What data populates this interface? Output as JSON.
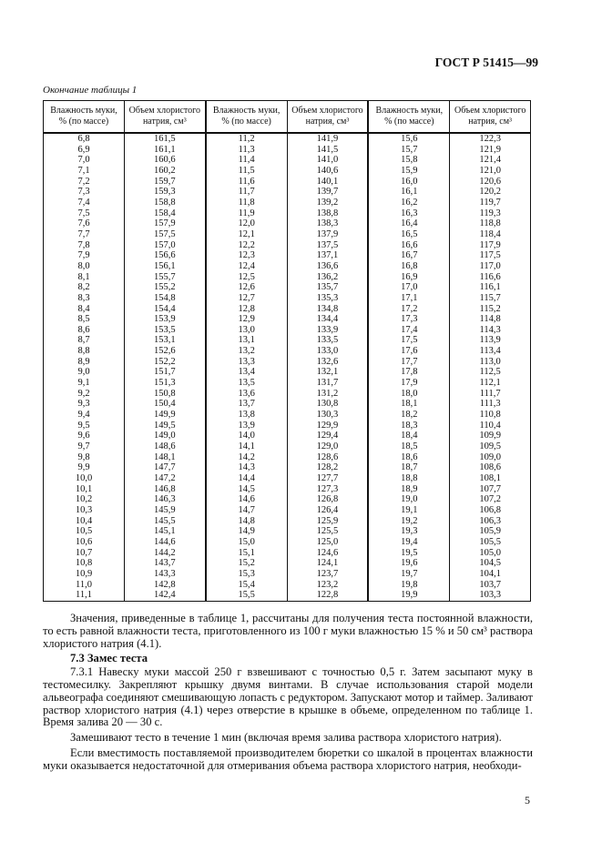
{
  "header": {
    "doc_code": "ГОСТ Р 51415—99"
  },
  "table": {
    "caption": "Окончание таблицы 1",
    "headers": [
      "Влажность муки, % (по массе)",
      "Объем хлористого натрия, см³",
      "Влажность муки, % (по массе)",
      "Объем хлористого натрия, см³",
      "Влажность муки, % (по массе)",
      "Объем хлористого натрия, см³"
    ],
    "rows": [
      [
        "6,8",
        "161,5",
        "11,2",
        "141,9",
        "15,6",
        "122,3"
      ],
      [
        "6,9",
        "161,1",
        "11,3",
        "141,5",
        "15,7",
        "121,9"
      ],
      [
        "7,0",
        "160,6",
        "11,4",
        "141,0",
        "15,8",
        "121,4"
      ],
      [
        "7,1",
        "160,2",
        "11,5",
        "140,6",
        "15,9",
        "121,0"
      ],
      [
        "7,2",
        "159,7",
        "11,6",
        "140,1",
        "16,0",
        "120,6"
      ],
      [
        "7,3",
        "159,3",
        "11,7",
        "139,7",
        "16,1",
        "120,2"
      ],
      [
        "7,4",
        "158,8",
        "11,8",
        "139,2",
        "16,2",
        "119,7"
      ],
      [
        "7,5",
        "158,4",
        "11,9",
        "138,8",
        "16,3",
        "119,3"
      ],
      [
        "7,6",
        "157,9",
        "12,0",
        "138,3",
        "16,4",
        "118,8"
      ],
      [
        "7,7",
        "157,5",
        "12,1",
        "137,9",
        "16,5",
        "118,4"
      ],
      [
        "7,8",
        "157,0",
        "12,2",
        "137,5",
        "16,6",
        "117,9"
      ],
      [
        "7,9",
        "156,6",
        "12,3",
        "137,1",
        "16,7",
        "117,5"
      ],
      [
        "8,0",
        "156,1",
        "12,4",
        "136,6",
        "16,8",
        "117,0"
      ],
      [
        "8,1",
        "155,7",
        "12,5",
        "136,2",
        "16,9",
        "116,6"
      ],
      [
        "8,2",
        "155,2",
        "12,6",
        "135,7",
        "17,0",
        "116,1"
      ],
      [
        "8,3",
        "154,8",
        "12,7",
        "135,3",
        "17,1",
        "115,7"
      ],
      [
        "8,4",
        "154,4",
        "12,8",
        "134,8",
        "17,2",
        "115,2"
      ],
      [
        "8,5",
        "153,9",
        "12,9",
        "134,4",
        "17,3",
        "114,8"
      ],
      [
        "8,6",
        "153,5",
        "13,0",
        "133,9",
        "17,4",
        "114,3"
      ],
      [
        "8,7",
        "153,1",
        "13,1",
        "133,5",
        "17,5",
        "113,9"
      ],
      [
        "8,8",
        "152,6",
        "13,2",
        "133,0",
        "17,6",
        "113,4"
      ],
      [
        "8,9",
        "152,2",
        "13,3",
        "132,6",
        "17,7",
        "113,0"
      ],
      [
        "9,0",
        "151,7",
        "13,4",
        "132,1",
        "17,8",
        "112,5"
      ],
      [
        "9,1",
        "151,3",
        "13,5",
        "131,7",
        "17,9",
        "112,1"
      ],
      [
        "9,2",
        "150,8",
        "13,6",
        "131,2",
        "18,0",
        "111,7"
      ],
      [
        "9,3",
        "150,4",
        "13,7",
        "130,8",
        "18,1",
        "111,3"
      ],
      [
        "9,4",
        "149,9",
        "13,8",
        "130,3",
        "18,2",
        "110,8"
      ],
      [
        "9,5",
        "149,5",
        "13,9",
        "129,9",
        "18,3",
        "110,4"
      ],
      [
        "9,6",
        "149,0",
        "14,0",
        "129,4",
        "18,4",
        "109,9"
      ],
      [
        "9,7",
        "148,6",
        "14,1",
        "129,0",
        "18,5",
        "109,5"
      ],
      [
        "9,8",
        "148,1",
        "14,2",
        "128,6",
        "18,6",
        "109,0"
      ],
      [
        "9,9",
        "147,7",
        "14,3",
        "128,2",
        "18,7",
        "108,6"
      ],
      [
        "10,0",
        "147,2",
        "14,4",
        "127,7",
        "18,8",
        "108,1"
      ],
      [
        "10,1",
        "146,8",
        "14,5",
        "127,3",
        "18,9",
        "107,7"
      ],
      [
        "10,2",
        "146,3",
        "14,6",
        "126,8",
        "19,0",
        "107,2"
      ],
      [
        "10,3",
        "145,9",
        "14,7",
        "126,4",
        "19,1",
        "106,8"
      ],
      [
        "10,4",
        "145,5",
        "14,8",
        "125,9",
        "19,2",
        "106,3"
      ],
      [
        "10,5",
        "145,1",
        "14,9",
        "125,5",
        "19,3",
        "105,9"
      ],
      [
        "10,6",
        "144,6",
        "15,0",
        "125,0",
        "19,4",
        "105,5"
      ],
      [
        "10,7",
        "144,2",
        "15,1",
        "124,6",
        "19,5",
        "105,0"
      ],
      [
        "10,8",
        "143,7",
        "15,2",
        "124,1",
        "19,6",
        "104,5"
      ],
      [
        "10,9",
        "143,3",
        "15,3",
        "123,7",
        "19,7",
        "104,1"
      ],
      [
        "11,0",
        "142,8",
        "15,4",
        "123,2",
        "19,8",
        "103,7"
      ],
      [
        "11,1",
        "142,4",
        "15,5",
        "122,8",
        "19,9",
        "103,3"
      ]
    ]
  },
  "body": {
    "p1": "Значения, приведенные в таблице 1, рассчитаны для получения теста постоянной влажности, то есть равной влажности теста, приготовленного из 100 г муки влажностью 15 % и 50 см³ раствора хлористого натрия (4.1).",
    "section": "7.3  Замес теста",
    "p2": "7.3.1  Навеску муки массой 250 г взвешивают с точностью 0,5 г. Затем засыпают муку в тестомесилку. Закрепляют крышку двумя винтами. В случае использования старой модели альвеографа соединяют смешивающую лопасть с редуктором. Запускают мотор и таймер. Заливают раствор хлористого натрия (4.1) через отверстие в крышке в объеме, определенном по таблице 1. Время залива 20 — 30 с.",
    "p3": "Замешивают тесто в течение 1 мин (включая время залива раствора хлористого натрия).",
    "p4": "Если вместимость поставляемой производителем бюретки со шкалой в процентах влажности муки оказывается недостаточной для отмеривания объема раствора хлористого натрия, необходи-"
  },
  "footer": {
    "page_number": "5"
  }
}
